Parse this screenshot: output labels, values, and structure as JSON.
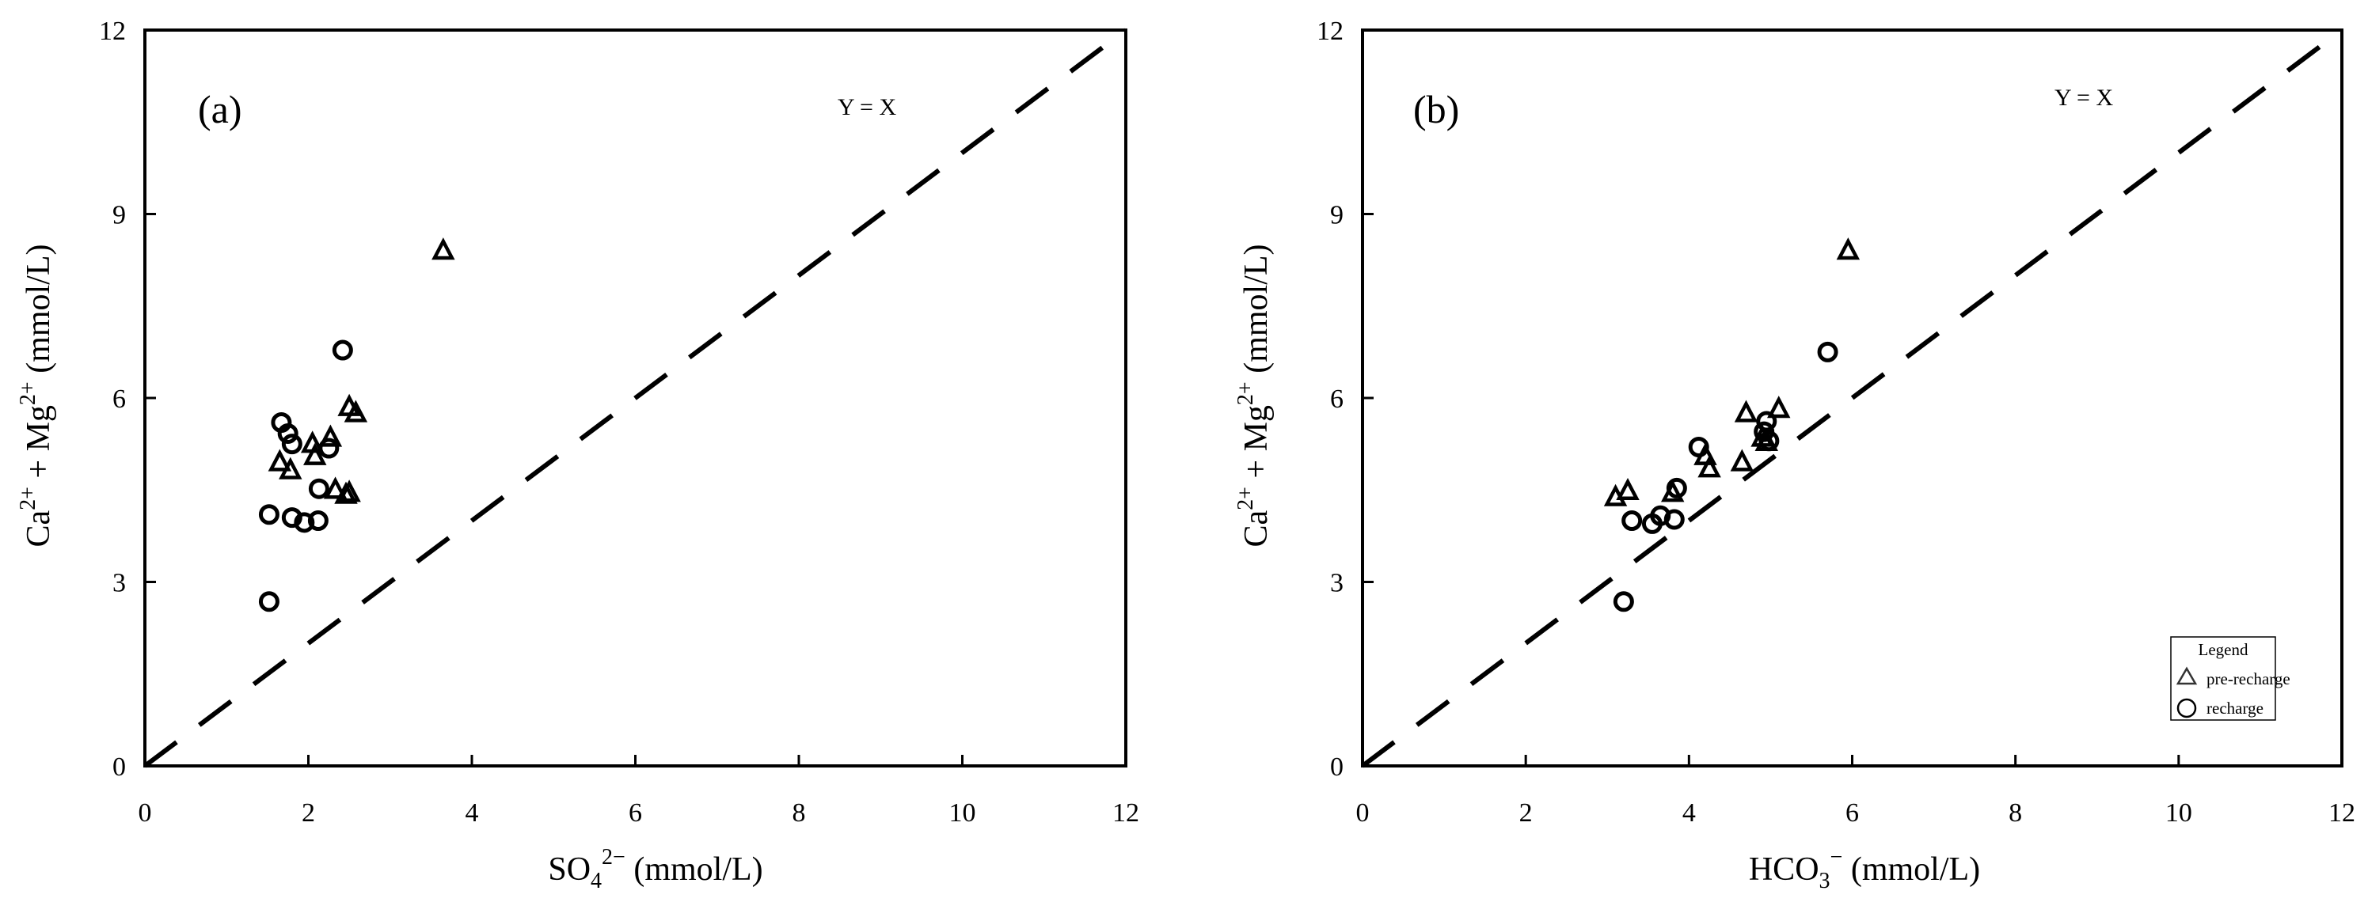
{
  "chart_data": [
    {
      "type": "scatter",
      "panel_label": "(a)",
      "xlabel": {
        "base": "SO",
        "sub": "4",
        "sup": "2−",
        "unit": " (mmol/L)"
      },
      "ylabel": {
        "p1": "Ca",
        "s1": "2+",
        "p2": " + Mg",
        "s2": "2+",
        "unit": " (mmol/L)"
      },
      "xlim": [
        0,
        12
      ],
      "ylim": [
        0,
        12
      ],
      "xticks": [
        "0",
        "2",
        "4",
        "6",
        "8",
        "10",
        "12"
      ],
      "yticks": [
        "0",
        "3",
        "6",
        "9",
        "12"
      ],
      "grid": false,
      "reference_line": {
        "label": "Y = X",
        "style": "dashed",
        "slope": 1
      },
      "series": [
        {
          "name": "pre-recharge",
          "marker": "triangle",
          "points": [
            [
              3.65,
              8.4
            ],
            [
              2.5,
              5.85
            ],
            [
              2.58,
              5.75
            ],
            [
              1.65,
              4.95
            ],
            [
              1.78,
              4.82
            ],
            [
              2.05,
              5.25
            ],
            [
              2.08,
              5.05
            ],
            [
              2.27,
              5.35
            ],
            [
              2.33,
              4.5
            ],
            [
              2.46,
              4.42
            ],
            [
              2.5,
              4.45
            ]
          ]
        },
        {
          "name": "recharge",
          "marker": "circle",
          "points": [
            [
              2.42,
              6.78
            ],
            [
              1.67,
              5.6
            ],
            [
              1.75,
              5.42
            ],
            [
              1.8,
              5.25
            ],
            [
              2.25,
              5.18
            ],
            [
              2.13,
              4.52
            ],
            [
              1.52,
              4.1
            ],
            [
              1.8,
              4.05
            ],
            [
              1.95,
              3.97
            ],
            [
              2.12,
              4.0
            ],
            [
              1.52,
              2.68
            ]
          ]
        }
      ]
    },
    {
      "type": "scatter",
      "panel_label": "(b)",
      "xlabel": {
        "base": "HCO",
        "sub": "3",
        "sup": "−",
        "unit": " (mmol/L)"
      },
      "ylabel": {
        "p1": "Ca",
        "s1": "2+",
        "p2": " + Mg",
        "s2": "2+",
        "unit": " (mmol/L)"
      },
      "xlim": [
        0,
        12
      ],
      "ylim": [
        0,
        12
      ],
      "xticks": [
        "0",
        "2",
        "4",
        "6",
        "8",
        "10",
        "12"
      ],
      "yticks": [
        "0",
        "3",
        "6",
        "9",
        "12"
      ],
      "grid": false,
      "reference_line": {
        "label": "Y = X",
        "style": "dashed",
        "slope": 1
      },
      "legend": {
        "title": "Legend",
        "position": "bottom-right"
      },
      "series": [
        {
          "name": "pre-recharge",
          "marker": "triangle",
          "points": [
            [
              5.95,
              8.4
            ],
            [
              4.7,
              5.75
            ],
            [
              5.1,
              5.82
            ],
            [
              4.65,
              4.95
            ],
            [
              4.25,
              4.85
            ],
            [
              4.2,
              5.05
            ],
            [
              3.1,
              4.38
            ],
            [
              3.25,
              4.48
            ],
            [
              3.8,
              4.45
            ],
            [
              4.9,
              5.35
            ],
            [
              4.95,
              5.28
            ]
          ]
        },
        {
          "name": "recharge",
          "marker": "circle",
          "points": [
            [
              5.7,
              6.75
            ],
            [
              4.95,
              5.62
            ],
            [
              4.12,
              5.2
            ],
            [
              4.92,
              5.45
            ],
            [
              4.98,
              5.3
            ],
            [
              3.85,
              4.53
            ],
            [
              3.3,
              4.0
            ],
            [
              3.55,
              3.95
            ],
            [
              3.65,
              4.08
            ],
            [
              3.82,
              4.02
            ],
            [
              3.2,
              2.68
            ]
          ]
        }
      ]
    }
  ]
}
